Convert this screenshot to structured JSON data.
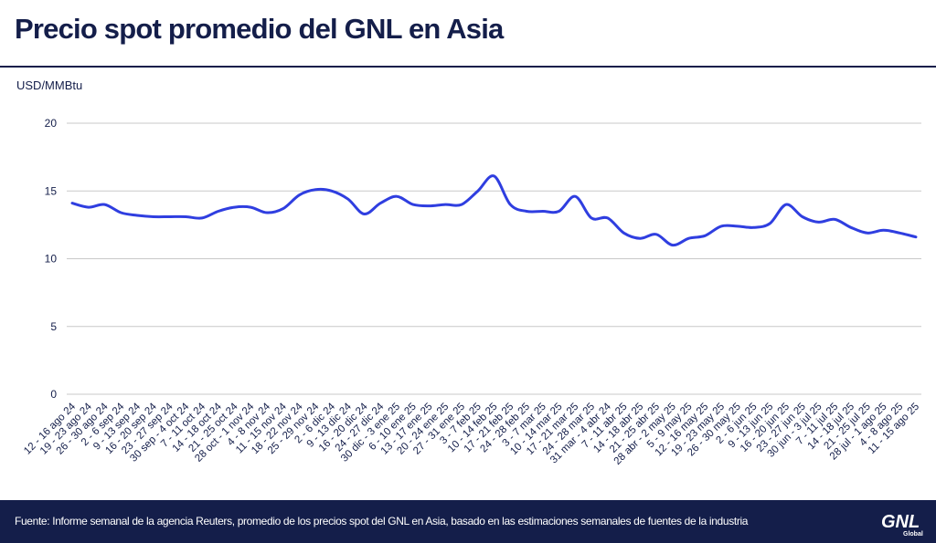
{
  "header": {
    "title": "Precio spot promedio del GNL en Asia",
    "unit": "USD/MMBtu"
  },
  "footer": {
    "source": "Fuente: Informe semanal de la agencia Reuters, promedio de los precios spot del GNL en Asia, basado en las estimaciones semanales de fuentes de la industria",
    "logo_text": "GNL",
    "logo_subtext": "Global"
  },
  "colors": {
    "navy": "#141e4a",
    "line": "#2f3ee0",
    "grid": "#c9c9c9"
  },
  "chart_data": {
    "type": "line",
    "title": "Precio spot promedio del GNL en Asia",
    "ylabel": "USD/MMBtu",
    "xlabel": "",
    "ylim": [
      0,
      20
    ],
    "yticks": [
      0,
      5,
      10,
      15,
      20
    ],
    "grid": true,
    "legend": "none",
    "categories": [
      "12 - 16 ago 24",
      "19 - 23 ago 24",
      "26 - 30 ago 24",
      "2 - 6 sep 24",
      "9 - 13 sep 24",
      "16 - 20 sep 24",
      "23 - 27 sep 24",
      "30 sep - 4 oct 24",
      "7 - 11 oct 24",
      "14 - 18 oct 24",
      "21 - 25 oct 24",
      "28 oct - 1 nov 24",
      "4 - 8 nov 24",
      "11 - 15 nov 24",
      "18 - 22 nov 24",
      "25 - 29 nov 24",
      "2 - 6 dic 24",
      "9 - 13 dic 24",
      "16 - 20 dic 24",
      "24 - 27 dic 24",
      "30 dic - 3 ene 25",
      "6 - 10 ene 25",
      "13 - 17 ene 25",
      "20 - 24 ene 25",
      "27 - 31 ene 25",
      "3 - 7 feb 25",
      "10 - 14 feb 25",
      "17 - 21 feb 25",
      "24 - 28 feb 25",
      "3 - 7 mar 25",
      "10 - 14 mar 25",
      "17 - 21 mar 25",
      "24 - 28 mar 25",
      "31 mar - 4 abr 24",
      "7 - 11 abr 25",
      "14 - 18 abr 25",
      "21 - 25 abr 25",
      "28 abr - 2 may 25",
      "5 - 9 may 25",
      "12 - 16 may 25",
      "19 - 23 may 25",
      "26 - 30 may 25",
      "2 - 6 jun 25",
      "9 - 13 jun 25",
      "16 - 20 jun 25",
      "23 - 27 jun 25",
      "30 jun - 3 jul 25",
      "7 - 11 jul 25",
      "14 - 18 jul 25",
      "21 - 25 jul 25",
      "28 jul - 1 ago 25",
      "4 - 8 ago 25",
      "11 - 15 ago 25"
    ],
    "series": [
      {
        "values": [
          14.1,
          13.8,
          14.0,
          13.4,
          13.2,
          13.1,
          13.1,
          13.1,
          13.0,
          13.5,
          13.8,
          13.8,
          13.4,
          13.7,
          14.7,
          15.1,
          15.0,
          14.4,
          13.3,
          14.1,
          14.6,
          14.0,
          13.9,
          14.0,
          14.0,
          15.0,
          16.1,
          14.0,
          13.5,
          13.5,
          13.5,
          14.6,
          13.0,
          13.0,
          11.9,
          11.5,
          11.8,
          11.0,
          11.5,
          11.7,
          12.4,
          12.4,
          12.3,
          12.6,
          14.0,
          13.1,
          12.7,
          12.9,
          12.3,
          11.9,
          12.1,
          11.9,
          11.6
        ]
      }
    ]
  }
}
